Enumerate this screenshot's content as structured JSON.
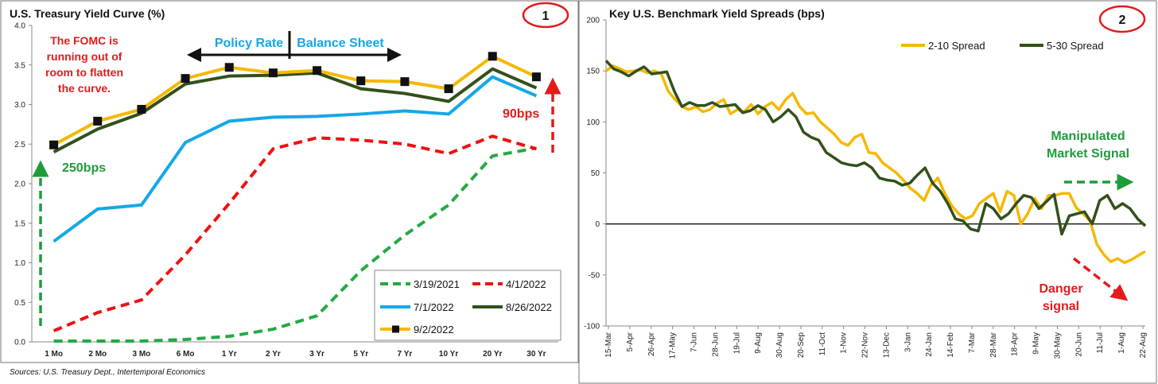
{
  "source_note": "Sources: U.S. Treasury Dept., Intertemporal Economics",
  "colors": {
    "green_dash": "#22aa44",
    "red_dash": "#ee1111",
    "blue": "#12a8e8",
    "dark_green": "#33501a",
    "gold": "#f5b800",
    "annotation_red": "#e31b1b",
    "annotation_green": "#1f9c3c",
    "annotation_blue": "#12a8e8"
  },
  "chart_data": [
    {
      "type": "line",
      "title": "U.S. Treasury Yield Curve (%)",
      "badge": "1",
      "categories": [
        "1 Mo",
        "2 Mo",
        "3 Mo",
        "6 Mo",
        "1 Yr",
        "2 Yr",
        "3 Yr",
        "5 Yr",
        "7 Yr",
        "10 Yr",
        "20 Yr",
        "30 Yr"
      ],
      "ylim": [
        0,
        4.0
      ],
      "yticks": [
        "0.0",
        "0.5",
        "1.0",
        "1.5",
        "2.0",
        "2.5",
        "3.0",
        "3.5",
        "4.0"
      ],
      "grid": false,
      "legend_position": "bottom-right",
      "series": [
        {
          "name": "3/19/2021",
          "style": "dashed",
          "color": "#22aa44",
          "values": [
            0.01,
            0.01,
            0.01,
            0.03,
            0.07,
            0.16,
            0.33,
            0.9,
            1.35,
            1.73,
            2.35,
            2.45
          ]
        },
        {
          "name": "4/1/2022",
          "style": "dashed",
          "color": "#ee1111",
          "values": [
            0.14,
            0.37,
            0.53,
            1.1,
            1.75,
            2.44,
            2.58,
            2.55,
            2.5,
            2.38,
            2.6,
            2.44
          ]
        },
        {
          "name": "7/1/2022",
          "style": "solid",
          "color": "#12a8e8",
          "values": [
            1.27,
            1.68,
            1.73,
            2.52,
            2.79,
            2.84,
            2.85,
            2.88,
            2.92,
            2.88,
            3.35,
            3.11
          ]
        },
        {
          "name": "8/26/2022",
          "style": "solid",
          "color": "#33501a",
          "values": [
            2.4,
            2.69,
            2.89,
            3.26,
            3.36,
            3.37,
            3.4,
            3.2,
            3.14,
            3.04,
            3.45,
            3.21
          ]
        },
        {
          "name": "9/2/2022",
          "style": "marker",
          "color": "#f5b800",
          "values": [
            2.49,
            2.79,
            2.94,
            3.33,
            3.47,
            3.4,
            3.43,
            3.3,
            3.29,
            3.2,
            3.61,
            3.35
          ]
        }
      ],
      "annotations": {
        "fomc": [
          "The FOMC is",
          "running out of",
          "room to flatten",
          "the curve."
        ],
        "policy_rate": "Policy Rate",
        "balance_sheet": "Balance Sheet",
        "short_end": "250bps",
        "long_end": "90bps"
      }
    },
    {
      "type": "line",
      "title": "Key U.S. Benchmark Yield Spreads (bps)",
      "badge": "2",
      "ylim": [
        -100,
        200
      ],
      "yticks": [
        "-100",
        "-50",
        "0",
        "50",
        "100",
        "150",
        "200"
      ],
      "x_tick_labels": [
        "15-Mar",
        "5-Apr",
        "26-Apr",
        "17-May",
        "7-Jun",
        "28-Jun",
        "19-Jul",
        "9-Aug",
        "30-Aug",
        "20-Sep",
        "11-Oct",
        "1-Nov",
        "22-Nov",
        "13-Dec",
        "3-Jan",
        "24-Jan",
        "14-Feb",
        "7-Mar",
        "28-Mar",
        "18-Apr",
        "9-May",
        "30-May",
        "20-Jun",
        "11-Jul",
        "1-Aug",
        "22-Aug"
      ],
      "legend_position": "top-right",
      "series": [
        {
          "name": "2-10 Spread",
          "color": "#f5b800",
          "values": [
            150,
            155,
            152,
            149,
            150,
            151,
            148,
            150,
            147,
            130,
            122,
            115,
            112,
            115,
            110,
            112,
            118,
            122,
            108,
            112,
            110,
            117,
            108,
            115,
            119,
            112,
            122,
            128,
            115,
            108,
            109,
            100,
            94,
            88,
            80,
            77,
            85,
            88,
            70,
            69,
            60,
            55,
            50,
            43,
            35,
            30,
            23,
            38,
            45,
            30,
            18,
            10,
            5,
            8,
            20,
            25,
            30,
            12,
            32,
            28,
            0,
            10,
            25,
            15,
            28,
            28,
            30,
            30,
            16,
            10,
            3,
            -20,
            -30,
            -37,
            -34,
            -38,
            -35,
            -31,
            -27
          ]
        },
        {
          "name": "5-30 Spread",
          "color": "#33501a",
          "values": [
            160,
            152,
            149,
            145,
            150,
            154,
            147,
            148,
            149,
            130,
            115,
            119,
            116,
            116,
            119,
            115,
            116,
            117,
            109,
            111,
            116,
            112,
            100,
            105,
            112,
            105,
            90,
            85,
            82,
            70,
            65,
            60,
            58,
            57,
            60,
            55,
            45,
            43,
            42,
            38,
            40,
            48,
            55,
            40,
            32,
            20,
            5,
            3,
            -5,
            -7,
            20,
            15,
            5,
            10,
            20,
            28,
            26,
            15,
            22,
            29,
            -10,
            8,
            10,
            12,
            0,
            23,
            28,
            15,
            20,
            15,
            5,
            -2
          ]
        }
      ],
      "annotations": {
        "manipulated": [
          "Manipulated",
          "Market Signal"
        ],
        "danger": [
          "Danger",
          "signal"
        ]
      }
    }
  ]
}
